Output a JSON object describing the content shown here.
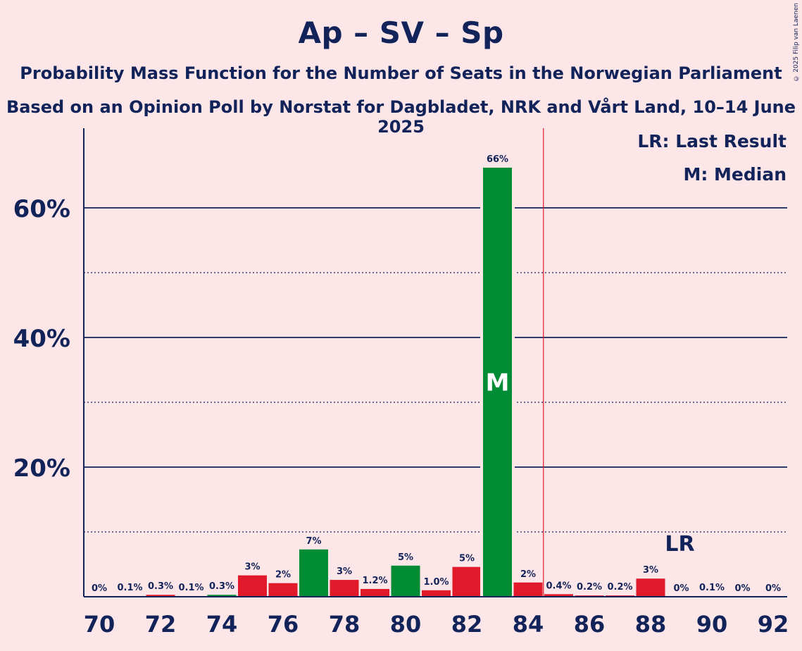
{
  "title": "Ap – SV – Sp",
  "subtitle1": "Probability Mass Function for the Number of Seats in the Norwegian Parliament",
  "subtitle2": "Based on an Opinion Poll by Norstat for Dagbladet, NRK and Vårt Land, 10–14 June 2025",
  "copyright": "© 2025 Filip van Laenen",
  "legend": {
    "last_result": "LR: Last Result",
    "median": "M: Median"
  },
  "colors": {
    "background": "#FDE6E8",
    "text": "#12235A",
    "green": "#008B35",
    "red": "#E01A2B",
    "majority_line": "#E01A2B"
  },
  "chart_data": {
    "type": "bar",
    "x": [
      70,
      71,
      72,
      73,
      74,
      75,
      76,
      77,
      78,
      79,
      80,
      81,
      82,
      83,
      84,
      85,
      86,
      87,
      88,
      89,
      90,
      91,
      92
    ],
    "values": [
      0,
      0.1,
      0.3,
      0.1,
      0.3,
      3.3,
      2.1,
      7.3,
      2.6,
      1.2,
      4.8,
      1.0,
      4.6,
      66.2,
      2.2,
      0.4,
      0.2,
      0.2,
      2.8,
      0,
      0.1,
      0,
      0
    ],
    "labels": [
      "0%",
      "0.1%",
      "0.3%",
      "0.1%",
      "0.3%",
      "3%",
      "2%",
      "7%",
      "3%",
      "1.2%",
      "5%",
      "1.0%",
      "5%",
      "66%",
      "2%",
      "0.4%",
      "0.2%",
      "0.2%",
      "3%",
      "0%",
      "0.1%",
      "0%",
      "0%"
    ],
    "colors": [
      "red",
      "red",
      "red",
      "red",
      "green",
      "red",
      "red",
      "green",
      "red",
      "red",
      "green",
      "red",
      "red",
      "green",
      "red",
      "red",
      "red",
      "red",
      "red",
      "red",
      "red",
      "red",
      "red"
    ],
    "xticks": [
      "70",
      "72",
      "74",
      "76",
      "78",
      "80",
      "82",
      "84",
      "86",
      "88",
      "90",
      "92"
    ],
    "yticks": [
      "20%",
      "40%",
      "60%"
    ],
    "ylim": [
      0,
      72
    ],
    "gridlines_major": [
      20,
      40,
      60
    ],
    "gridlines_minor": [
      10,
      30,
      50
    ],
    "majority_line_x": 84.5,
    "median_seat": 83,
    "median_label": "M",
    "last_result_seat": 89,
    "last_result_label": "LR"
  }
}
